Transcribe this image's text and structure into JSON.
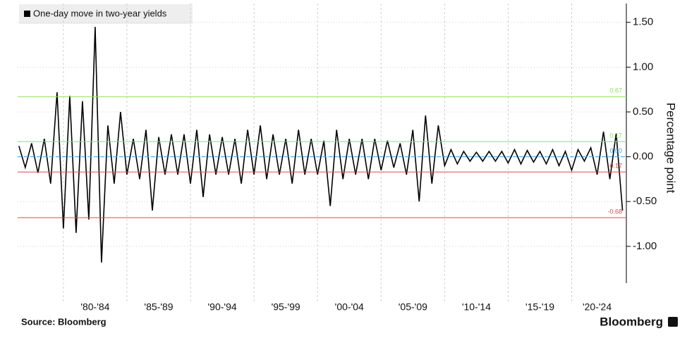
{
  "chart_data": {
    "type": "line",
    "series": [
      {
        "name": "One-day move in two-year yields",
        "color": "#000000",
        "values": [
          0.12,
          -0.12,
          0.15,
          -0.18,
          0.2,
          -0.3,
          0.72,
          -0.8,
          0.68,
          -0.85,
          0.62,
          -0.7,
          1.45,
          -1.18,
          0.35,
          -0.3,
          0.5,
          -0.2,
          0.2,
          -0.25,
          0.3,
          -0.6,
          0.22,
          -0.2,
          0.25,
          -0.2,
          0.25,
          -0.3,
          0.3,
          -0.45,
          0.25,
          -0.2,
          0.22,
          -0.2,
          0.2,
          -0.3,
          0.3,
          -0.2,
          0.35,
          -0.25,
          0.25,
          -0.2,
          0.2,
          -0.3,
          0.3,
          -0.2,
          0.2,
          -0.2,
          0.18,
          -0.55,
          0.3,
          -0.25,
          0.2,
          -0.2,
          0.2,
          -0.25,
          0.2,
          -0.15,
          0.18,
          -0.12,
          0.15,
          -0.2,
          0.3,
          -0.5,
          0.46,
          -0.3,
          0.35,
          -0.1,
          0.08,
          -0.08,
          0.06,
          -0.05,
          0.05,
          -0.05,
          0.06,
          -0.05,
          0.06,
          -0.07,
          0.08,
          -0.08,
          0.07,
          -0.06,
          0.06,
          -0.08,
          0.08,
          -0.1,
          0.06,
          -0.15,
          0.08,
          -0.05,
          0.1,
          -0.2,
          0.28,
          -0.25,
          0.26,
          -0.6
        ]
      }
    ],
    "x": [
      1976.5,
      1977,
      1977.5,
      1978,
      1978.5,
      1979,
      1979.5,
      1980,
      1980.5,
      1981,
      1981.5,
      1982,
      1982.5,
      1983,
      1983.5,
      1984,
      1984.5,
      1985,
      1985.5,
      1986,
      1986.5,
      1987,
      1987.5,
      1988,
      1988.5,
      1989,
      1989.5,
      1990,
      1990.5,
      1991,
      1991.5,
      1992,
      1992.5,
      1993,
      1993.5,
      1994,
      1994.5,
      1995,
      1995.5,
      1996,
      1996.5,
      1997,
      1997.5,
      1998,
      1998.5,
      1999,
      1999.5,
      2000,
      2000.5,
      2001,
      2001.5,
      2002,
      2002.5,
      2003,
      2003.5,
      2004,
      2004.5,
      2005,
      2005.5,
      2006,
      2006.5,
      2007,
      2007.5,
      2008,
      2008.5,
      2009,
      2009.5,
      2010,
      2010.5,
      2011,
      2011.5,
      2012,
      2012.5,
      2013,
      2013.5,
      2014,
      2014.5,
      2015,
      2015.5,
      2016,
      2016.5,
      2017,
      2017.5,
      2018,
      2018.5,
      2019,
      2019.5,
      2020,
      2020.5,
      2021,
      2021.5,
      2022,
      2022.5,
      2023,
      2023.5,
      2024
    ],
    "xlim": [
      1976.4,
      2024.3
    ],
    "xticks": [
      {
        "value": 1982.5,
        "label": "'80-'84"
      },
      {
        "value": 1987.5,
        "label": "'85-'89"
      },
      {
        "value": 1992.5,
        "label": "'90-'94"
      },
      {
        "value": 1997.5,
        "label": "'95-'99"
      },
      {
        "value": 2002.5,
        "label": "'00-'04"
      },
      {
        "value": 2007.5,
        "label": "'05-'09"
      },
      {
        "value": 2012.5,
        "label": "'10-'14"
      },
      {
        "value": 2017.5,
        "label": "'15-'19"
      },
      {
        "value": 2022,
        "label": "'20-'24"
      }
    ],
    "xgrid": [
      1980,
      1985,
      1990,
      1995,
      2000,
      2005,
      2010,
      2015,
      2020
    ],
    "ylim": [
      -1.41,
      1.71
    ],
    "yticks": [
      {
        "value": 1.5,
        "label": "1.50"
      },
      {
        "value": 1,
        "label": "1.00"
      },
      {
        "value": 0.5,
        "label": "0.50"
      },
      {
        "value": 0,
        "label": "0.00"
      },
      {
        "value": -0.5,
        "label": "-0.50"
      },
      {
        "value": -1,
        "label": "-1.00"
      }
    ],
    "y_label": "Percentage point",
    "reference_lines": [
      {
        "value": 0.67,
        "label": "0.67",
        "color": "#8ee05a"
      },
      {
        "value": 0.17,
        "label": "0.17",
        "color": "#8ee05a"
      },
      {
        "value": 0,
        "label": "0.00",
        "color": "#3aa0e0"
      },
      {
        "value": -0.17,
        "label": "-0.17",
        "color": "#e04848"
      },
      {
        "value": -0.68,
        "label": "-0.68",
        "color": "#e04848"
      }
    ],
    "source": "Source: Bloomberg",
    "brand": "Bloomberg",
    "grid": true
  }
}
